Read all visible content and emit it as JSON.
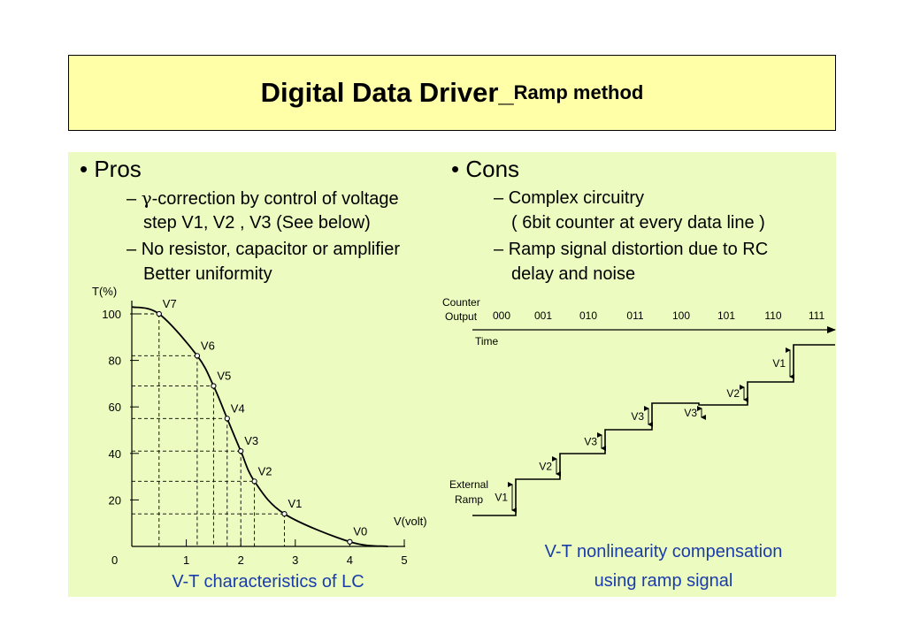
{
  "title": {
    "main": "Digital Data Driver_",
    "sub": "Ramp method"
  },
  "pros": {
    "heading": "• Pros",
    "items": [
      {
        "dash": "–",
        "symbol": "γ",
        "line1": "-correction by control of voltage",
        "line2": "step V1, V2 , V3 (See below)"
      },
      {
        "dash": "–",
        "line1": "No resistor, capacitor or amplifier",
        "line2": "Better uniformity"
      }
    ]
  },
  "cons": {
    "heading": "• Cons",
    "items": [
      {
        "dash": "–",
        "line1": "Complex circuitry",
        "line2": "( 6bit counter at every data line )"
      },
      {
        "dash": "–",
        "line1": "Ramp signal distortion due to RC",
        "line2": "delay and noise"
      }
    ]
  },
  "vt_chart": {
    "ylabel": "T(%)",
    "xlabel": "V(volt)",
    "origin_label": "0",
    "x_ticks": [
      "1",
      "2",
      "3",
      "4",
      "5"
    ],
    "y_ticks": [
      "20",
      "40",
      "60",
      "80",
      "100"
    ],
    "points": [
      {
        "name": "V7",
        "v": 0.5,
        "t": 100
      },
      {
        "name": "V6",
        "v": 1.2,
        "t": 82
      },
      {
        "name": "V5",
        "v": 1.5,
        "t": 69
      },
      {
        "name": "V4",
        "v": 1.75,
        "t": 55
      },
      {
        "name": "V3",
        "v": 2.0,
        "t": 41
      },
      {
        "name": "V2",
        "v": 2.25,
        "t": 28
      },
      {
        "name": "V1",
        "v": 2.8,
        "t": 14
      },
      {
        "name": "V0",
        "v": 4.0,
        "t": 2
      }
    ],
    "caption": "V-T characteristics of LC"
  },
  "ramp_chart": {
    "counter_label_1": "Counter",
    "counter_label_2": "Output",
    "codes": [
      "000",
      "001",
      "010",
      "011",
      "100",
      "101",
      "110",
      "111"
    ],
    "time_label": "Time",
    "external_label_1": "External",
    "external_label_2": "Ramp",
    "step_labels": [
      "V1",
      "V2",
      "V3",
      "V3",
      "V3",
      "V2",
      "V1"
    ],
    "caption_line1": "V-T nonlinearity compensation",
    "caption_line2": "using ramp signal"
  }
}
